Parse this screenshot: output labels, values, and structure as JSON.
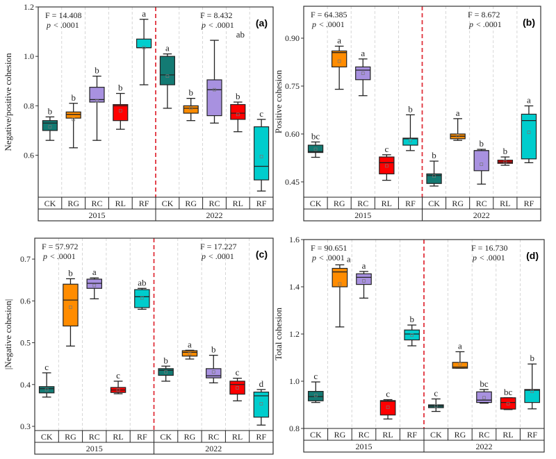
{
  "chart_data": [
    {
      "type": "box",
      "panel_label": "(a)",
      "ylabel": "Negative/positive cohesion",
      "ylim": [
        0.43,
        1.2
      ],
      "yticks": [
        0.6,
        0.8,
        1.0,
        1.2
      ],
      "tick_labels": [
        "0.6",
        "0.8",
        "1.0",
        "1.2"
      ],
      "categories": [
        "CK",
        "RG",
        "RC",
        "RL",
        "RF",
        "CK",
        "RG",
        "RC",
        "RL",
        "RF"
      ],
      "years": [
        "2015",
        "2022"
      ],
      "stats": [
        {
          "f": "F = 14.408",
          "p": "p",
          "pv": "< .0001"
        },
        {
          "f": "F = 8.432",
          "p": "p",
          "pv": "< .0001"
        }
      ],
      "letters": [
        "b",
        "b",
        "b",
        "b",
        "a",
        "a",
        "b",
        "ab",
        "b",
        "c"
      ],
      "boxes": [
        [
          0.66,
          0.7,
          0.73,
          0.74,
          0.755,
          0.715
        ],
        [
          0.63,
          0.75,
          0.765,
          0.775,
          0.81,
          0.745
        ],
        [
          0.66,
          0.815,
          0.825,
          0.875,
          0.92,
          0.82
        ],
        [
          0.705,
          0.74,
          0.8,
          0.805,
          0.85,
          0.78
        ],
        [
          0.885,
          1.035,
          1.035,
          1.07,
          1.15,
          1.035
        ],
        [
          0.79,
          0.885,
          0.925,
          1.0,
          1.01,
          0.92
        ],
        [
          0.74,
          0.77,
          0.79,
          0.8,
          0.83,
          0.79
        ],
        [
          0.73,
          0.76,
          0.865,
          0.905,
          1.065,
          0.865
        ],
        [
          0.695,
          0.745,
          0.77,
          0.805,
          0.815,
          0.765
        ],
        [
          0.455,
          0.5,
          0.555,
          0.715,
          0.745,
          0.595
        ]
      ]
    },
    {
      "type": "box",
      "panel_label": "(b)",
      "ylabel": "Positive cohesion",
      "ylim": [
        0.402,
        1.0
      ],
      "yticks": [
        0.45,
        0.6,
        0.75,
        0.9
      ],
      "tick_labels": [
        "0.45",
        "0.60",
        "0.75",
        "0.90"
      ],
      "categories": [
        "CK",
        "RG",
        "RC",
        "RL",
        "RF",
        "CK",
        "RG",
        "RC",
        "RL",
        "RF"
      ],
      "years": [
        "2015",
        "2022"
      ],
      "stats": [
        {
          "f": "F = 64.385",
          "p": "p",
          "pv": "< .0001"
        },
        {
          "f": "F = 8.672",
          "p": "p",
          "pv": "< .0001"
        }
      ],
      "letters": [
        "bc",
        "a",
        "a",
        "c",
        "b",
        "b",
        "a",
        "b",
        "b",
        "a"
      ],
      "boxes": [
        [
          0.527,
          0.542,
          0.545,
          0.565,
          0.575,
          0.552
        ],
        [
          0.74,
          0.81,
          0.855,
          0.86,
          0.875,
          0.828
        ],
        [
          0.72,
          0.77,
          0.8,
          0.81,
          0.835,
          0.79
        ],
        [
          0.455,
          0.475,
          0.51,
          0.528,
          0.535,
          0.5
        ],
        [
          0.548,
          0.565,
          0.585,
          0.587,
          0.66,
          0.58
        ],
        [
          0.437,
          0.445,
          0.47,
          0.475,
          0.515,
          0.468
        ],
        [
          0.58,
          0.585,
          0.593,
          0.6,
          0.648,
          0.595
        ],
        [
          0.443,
          0.485,
          0.548,
          0.548,
          0.552,
          0.505
        ],
        [
          0.502,
          0.508,
          0.512,
          0.518,
          0.528,
          0.513
        ],
        [
          0.51,
          0.522,
          0.642,
          0.662,
          0.688,
          0.605
        ]
      ]
    },
    {
      "type": "box",
      "panel_label": "(c)",
      "ylabel": "|Negative cohesion|",
      "ylim": [
        0.29,
        0.75
      ],
      "yticks": [
        0.3,
        0.4,
        0.5,
        0.6,
        0.7
      ],
      "tick_labels": [
        "0.3",
        "0.4",
        "0.5",
        "0.6",
        "0.7"
      ],
      "categories": [
        "CK",
        "RG",
        "RC",
        "RL",
        "RF",
        "CK",
        "RG",
        "RC",
        "RL",
        "RF"
      ],
      "years": [
        "2015",
        "2022"
      ],
      "stats": [
        {
          "f": "F = 57.972",
          "p": "p",
          "pv": "< .0001"
        },
        {
          "f": "F = 17.227",
          "p": "p",
          "pv": "< .0001"
        }
      ],
      "letters": [
        "c",
        "b",
        "a",
        "c",
        "ab",
        "b",
        "a",
        "b",
        "c",
        "d"
      ],
      "boxes": [
        [
          0.37,
          0.38,
          0.39,
          0.395,
          0.428,
          0.388
        ],
        [
          0.492,
          0.54,
          0.602,
          0.64,
          0.653,
          0.585
        ],
        [
          0.605,
          0.63,
          0.642,
          0.652,
          0.655,
          0.637
        ],
        [
          0.378,
          0.381,
          0.387,
          0.393,
          0.408,
          0.387
        ],
        [
          0.58,
          0.584,
          0.61,
          0.627,
          0.63,
          0.607
        ],
        [
          0.408,
          0.422,
          0.434,
          0.438,
          0.444,
          0.43
        ],
        [
          0.461,
          0.468,
          0.477,
          0.481,
          0.482,
          0.474
        ],
        [
          0.404,
          0.416,
          0.421,
          0.438,
          0.47,
          0.43
        ],
        [
          0.361,
          0.377,
          0.4,
          0.408,
          0.415,
          0.392
        ],
        [
          0.303,
          0.322,
          0.373,
          0.382,
          0.388,
          0.354
        ]
      ]
    },
    {
      "type": "box",
      "panel_label": "(d)",
      "ylabel": "Total cohesion",
      "ylim": [
        0.8,
        1.6
      ],
      "yticks": [
        0.8,
        1.0,
        1.2,
        1.4,
        1.6
      ],
      "tick_labels": [
        "0.8",
        "1.0",
        "1.2",
        "1.4",
        "1.6"
      ],
      "categories": [
        "CK",
        "RG",
        "RC",
        "RL",
        "RF",
        "CK",
        "RG",
        "RC",
        "RL",
        "RF"
      ],
      "years": [
        "2015",
        "2022"
      ],
      "stats": [
        {
          "f": "F = 90.651",
          "p": "p",
          "pv": "< .0001"
        },
        {
          "f": "F = 16.730",
          "p": "p",
          "pv": "< .0001"
        }
      ],
      "letters": [
        "c",
        "a",
        "a",
        "c",
        "b",
        "c",
        "a",
        "bc",
        "bc",
        "b"
      ],
      "boxes": [
        [
          0.91,
          0.917,
          0.935,
          0.957,
          0.997,
          0.94
        ],
        [
          1.23,
          1.4,
          1.463,
          1.478,
          1.493,
          1.412
        ],
        [
          1.352,
          1.41,
          1.44,
          1.455,
          1.465,
          1.425
        ],
        [
          0.84,
          0.857,
          0.915,
          0.918,
          0.922,
          0.89
        ],
        [
          1.15,
          1.175,
          1.2,
          1.217,
          1.238,
          1.195
        ],
        [
          0.872,
          0.888,
          0.895,
          0.9,
          0.925,
          0.895
        ],
        [
          1.055,
          1.055,
          1.06,
          1.08,
          1.125,
          1.073
        ],
        [
          0.907,
          0.91,
          0.92,
          0.955,
          0.965,
          0.93
        ],
        [
          0.88,
          0.882,
          0.91,
          0.93,
          0.93,
          0.905
        ],
        [
          0.883,
          0.91,
          0.962,
          0.965,
          1.073,
          0.957
        ]
      ]
    }
  ],
  "box_format": [
    "whisker_low",
    "q1",
    "median",
    "q3",
    "whisker_high",
    "mean"
  ],
  "colors": {
    "CK": "#137a73",
    "RG": "#ff8c00",
    "RC": "#a891e0",
    "RL": "#ff0000",
    "RF": "#00cdcd",
    "divider": "#e0303a"
  }
}
